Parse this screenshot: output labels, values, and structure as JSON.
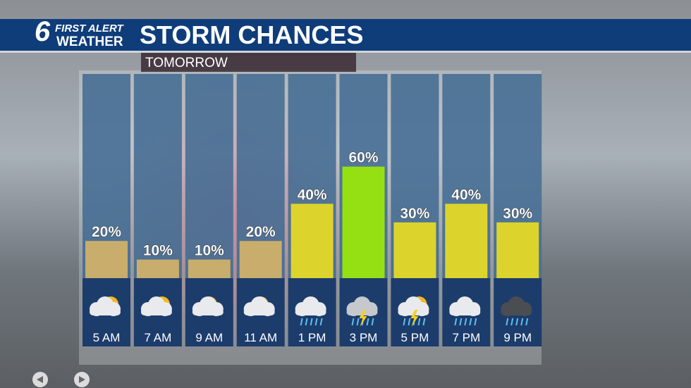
{
  "header": {
    "logo_number": "6",
    "logo_line1": "FIRST ALERT",
    "logo_line2": "WEATHER"
  },
  "chart_data": {
    "type": "bar",
    "title": "STORM CHANCES",
    "subtitle": "TOMORROW",
    "categories": [
      "5 AM",
      "7 AM",
      "9 AM",
      "11 AM",
      "1 PM",
      "3 PM",
      "5 PM",
      "7 PM",
      "9 PM"
    ],
    "values": [
      20,
      10,
      10,
      20,
      40,
      60,
      30,
      40,
      30
    ],
    "value_labels": [
      "20%",
      "10%",
      "10%",
      "20%",
      "40%",
      "60%",
      "30%",
      "40%",
      "30%"
    ],
    "colors": [
      "#c8ad6c",
      "#c8ad6c",
      "#c8ad6c",
      "#c8ad6c",
      "#dcd42c",
      "#94e012",
      "#dcd42c",
      "#dcd42c",
      "#dcd42c"
    ]
  }
}
